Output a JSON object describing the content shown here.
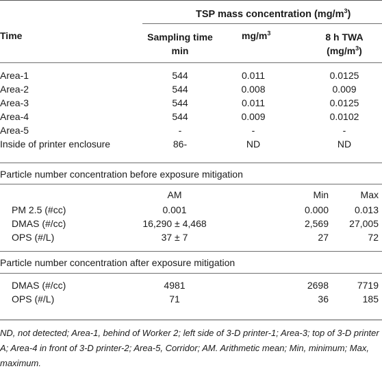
{
  "header": {
    "group_title": "TSP mass concentration (mg/m",
    "group_title_sup": "3",
    "group_title_end": ")",
    "col_time": "Time",
    "col_sampling_line1": "Sampling time",
    "col_sampling_line2": "min",
    "col_mg": "mg/m",
    "col_mg_sup": "3",
    "col_twa_line1": "8 h TWA",
    "col_twa_line2": "(mg/m",
    "col_twa_sup": "3",
    "col_twa_end": ")"
  },
  "tsp_rows": [
    {
      "time": "Area-1",
      "sampling": "544",
      "mg": "0.011",
      "twa": "0.0125"
    },
    {
      "time": "Area-2",
      "sampling": "544",
      "mg": "0.008",
      "twa": "0.009"
    },
    {
      "time": "Area-3",
      "sampling": "544",
      "mg": "0.011",
      "twa": "0.0125"
    },
    {
      "time": "Area-4",
      "sampling": "544",
      "mg": "0.009",
      "twa": "0.0102"
    },
    {
      "time": "Area-5",
      "sampling": "-",
      "mg": "-",
      "twa": "-"
    },
    {
      "time": "Inside of printer enclosure",
      "sampling": "86-",
      "mg": "ND",
      "twa": "ND"
    }
  ],
  "before": {
    "title": "Particle number concentration before exposure mitigation",
    "col_am": "AM",
    "col_min": "Min",
    "col_max": "Max",
    "rows": [
      {
        "label": "PM 2.5 (#cc)",
        "am": "0.001",
        "min": "0.000",
        "max": "0.013"
      },
      {
        "label": "DMAS (#/cc)",
        "am": "16,290 ± 4,468",
        "min": "2,569",
        "max": "27,005"
      },
      {
        "label": "OPS (#/L)",
        "am": "37 ± 7",
        "min": "27",
        "max": "72"
      }
    ]
  },
  "after": {
    "title": "Particle number concentration after exposure mitigation",
    "rows": [
      {
        "label": "DMAS (#/cc)",
        "am": "4981",
        "min": "2698",
        "max": "7719"
      },
      {
        "label": "OPS (#/L)",
        "am": "71",
        "min": "36",
        "max": "185"
      }
    ]
  },
  "footnote": "ND, not detected; Area-1, behind of Worker 2; left side of 3-D printer-1; Area-3; top of 3-D printer A; Area-4 in front of 3-D printer-2; Area-5, Corridor; AM. Arithmetic mean; Min, minimum; Max, maximum."
}
